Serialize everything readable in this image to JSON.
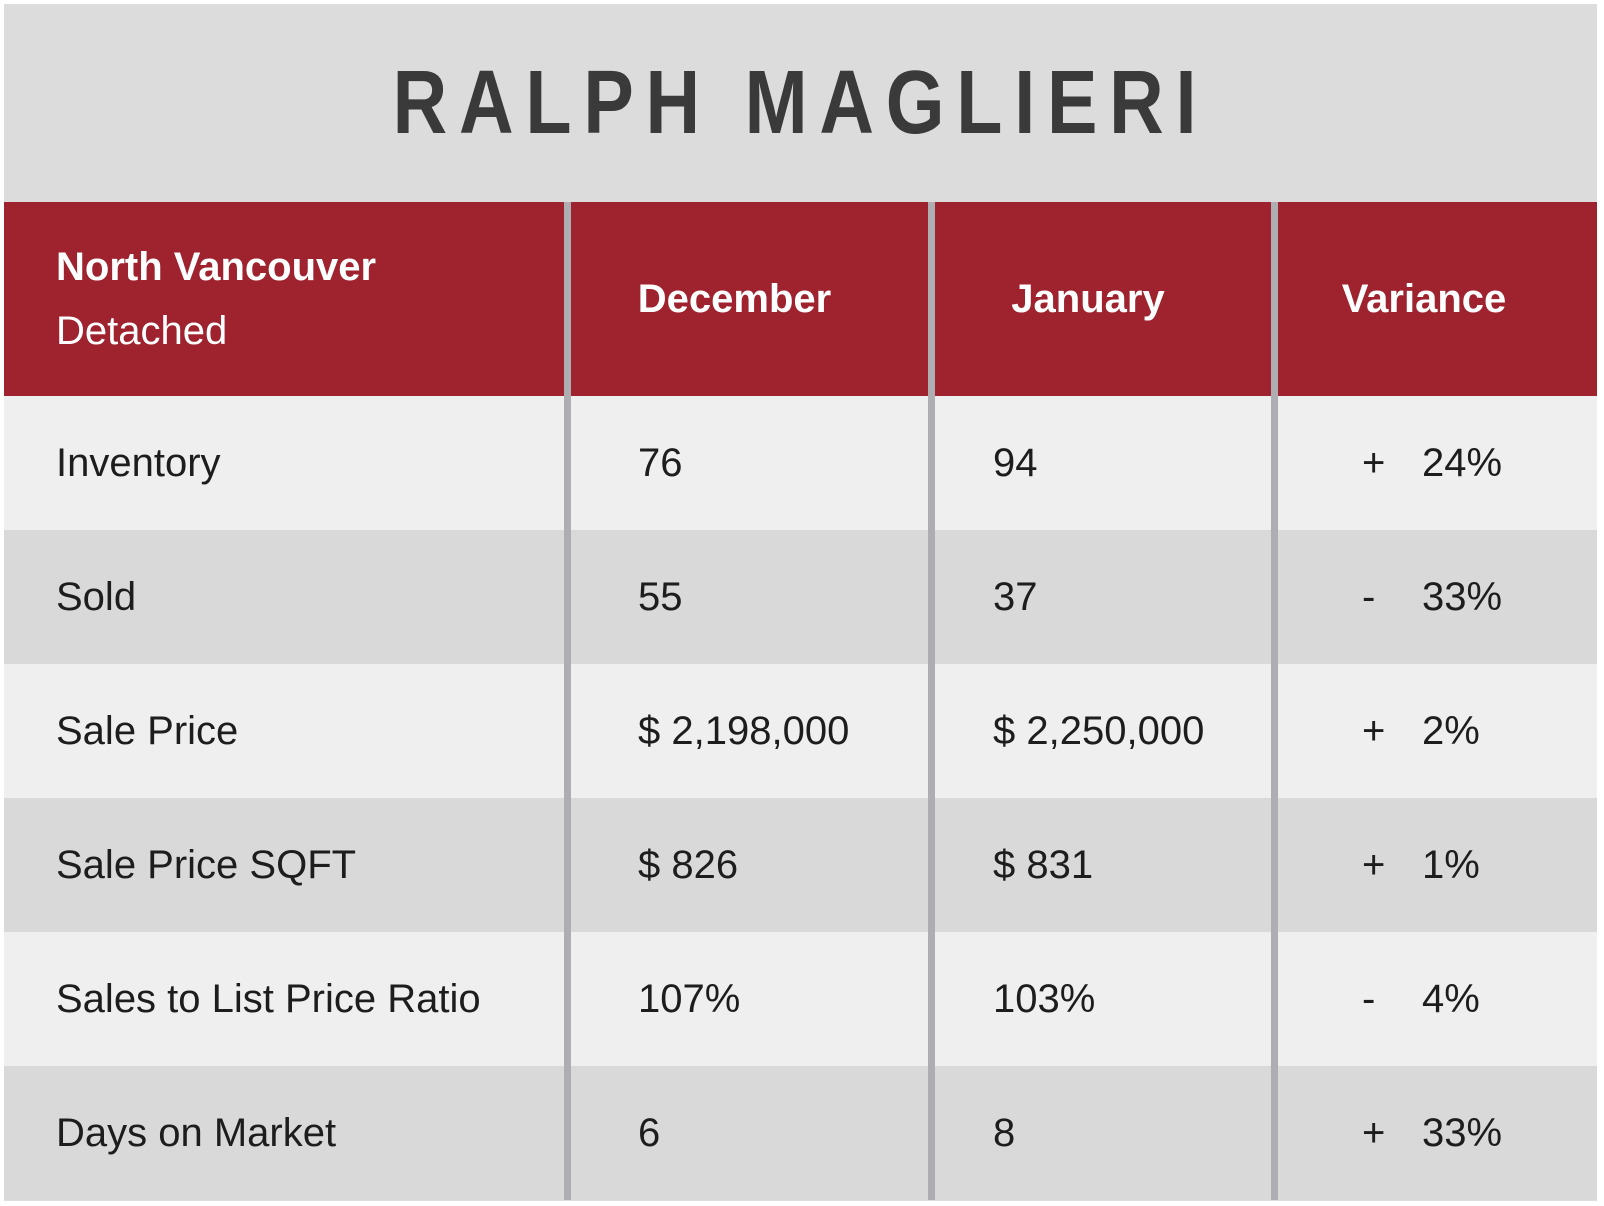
{
  "title": "RALPH MAGLIERI",
  "colors": {
    "header_bg": "#9e232e",
    "page_bg": "#dcdcdc",
    "row_light": "#efefef",
    "row_dark": "#d9d9d9",
    "divider": "#aeaeb2",
    "header_text": "#ffffff",
    "title_text": "#3a3a3a",
    "cell_text": "#1d1d1d"
  },
  "table": {
    "header": {
      "region": "North Vancouver",
      "segment": "Detached",
      "columns": [
        "December",
        "January",
        "Variance"
      ]
    },
    "rows": [
      {
        "label": "Inventory",
        "december": "76",
        "january": "94",
        "variance_sign": "+",
        "variance_value": "24%"
      },
      {
        "label": "Sold",
        "december": "55",
        "january": "37",
        "variance_sign": "-",
        "variance_value": "33%"
      },
      {
        "label": "Sale Price",
        "december": "$ 2,198,000",
        "january": "$ 2,250,000",
        "variance_sign": "+",
        "variance_value": "2%"
      },
      {
        "label": "Sale Price SQFT",
        "december": "$ 826",
        "january": "$ 831",
        "variance_sign": "+",
        "variance_value": "1%"
      },
      {
        "label": "Sales to List Price Ratio",
        "december": "107%",
        "january": "103%",
        "variance_sign": "-",
        "variance_value": "4%"
      },
      {
        "label": "Days on Market",
        "december": "6",
        "january": "8",
        "variance_sign": "+",
        "variance_value": "33%"
      }
    ]
  },
  "chart_data": {
    "type": "table",
    "title": "RALPH MAGLIERI",
    "columns": [
      "North Vancouver Detached",
      "December",
      "January",
      "Variance"
    ],
    "rows": [
      [
        "Inventory",
        76,
        94,
        "+24%"
      ],
      [
        "Sold",
        55,
        37,
        "-33%"
      ],
      [
        "Sale Price",
        "$ 2,198,000",
        "$ 2,250,000",
        "+2%"
      ],
      [
        "Sale Price SQFT",
        "$ 826",
        "$ 831",
        "+1%"
      ],
      [
        "Sales to List Price Ratio",
        "107%",
        "103%",
        "-4%"
      ],
      [
        "Days on Market",
        6,
        8,
        "+33%"
      ]
    ]
  }
}
